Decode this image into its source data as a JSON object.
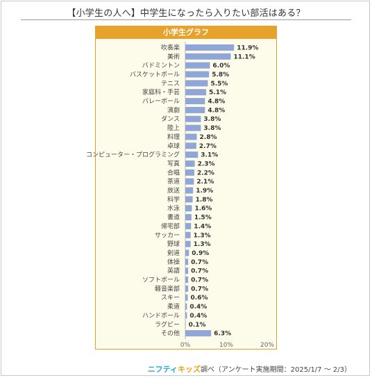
{
  "title": "【小学生の人へ】中学生になったら入りたい部活はある？",
  "chart_data": {
    "type": "bar",
    "orientation": "horizontal",
    "title": "小学生グラフ",
    "categories": [
      "吹奏楽",
      "美術",
      "バドミントン",
      "バスケットボール",
      "テニス",
      "家庭科・手芸",
      "バレーボール",
      "演劇",
      "ダンス",
      "陸上",
      "料理",
      "卓球",
      "コンピューター・プログラミング",
      "写真",
      "合唱",
      "茶道",
      "放送",
      "科学",
      "水泳",
      "書道",
      "帰宅部",
      "サッカー",
      "野球",
      "剣道",
      "体操",
      "英語",
      "ソフトボール",
      "軽音楽部",
      "スキー",
      "柔道",
      "ハンドボール",
      "ラグビー",
      "その他"
    ],
    "values": [
      11.9,
      11.1,
      6.0,
      5.8,
      5.5,
      5.1,
      4.8,
      4.8,
      3.8,
      3.8,
      2.8,
      2.7,
      3.1,
      2.3,
      2.2,
      2.1,
      1.9,
      1.8,
      1.6,
      1.5,
      1.4,
      1.3,
      1.3,
      0.9,
      0.7,
      0.7,
      0.7,
      0.7,
      0.6,
      0.4,
      0.4,
      0.1,
      6.3
    ],
    "value_labels": [
      "11.9%",
      "11.1%",
      "6.0%",
      "5.8%",
      "5.5%",
      "5.1%",
      "4.8%",
      "4.8%",
      "3.8%",
      "3.8%",
      "2.8%",
      "2.7%",
      "3.1%",
      "2.3%",
      "2.2%",
      "2.1%",
      "1.9%",
      "1.8%",
      "1.6%",
      "1.5%",
      "1.4%",
      "1.3%",
      "1.3%",
      "0.9%",
      "0.7%",
      "0.7%",
      "0.7%",
      "0.7%",
      "0.6%",
      "0.4%",
      "0.4%",
      "0.1%",
      "6.3%"
    ],
    "xlim": [
      0,
      20
    ],
    "xticks": [
      "0%",
      "10%",
      "20%"
    ],
    "grid": false,
    "colors": {
      "bar": "#8fa6d6",
      "panel_fill": "#fdfbea",
      "panel_border": "#e3a125",
      "header": "#e6a22a"
    }
  },
  "footer": {
    "brand_part1": "ニフティ",
    "brand_part2": "キッズ",
    "text": "調べ（アンケート実施期間：2025/1/7 ～ 2/3）"
  }
}
